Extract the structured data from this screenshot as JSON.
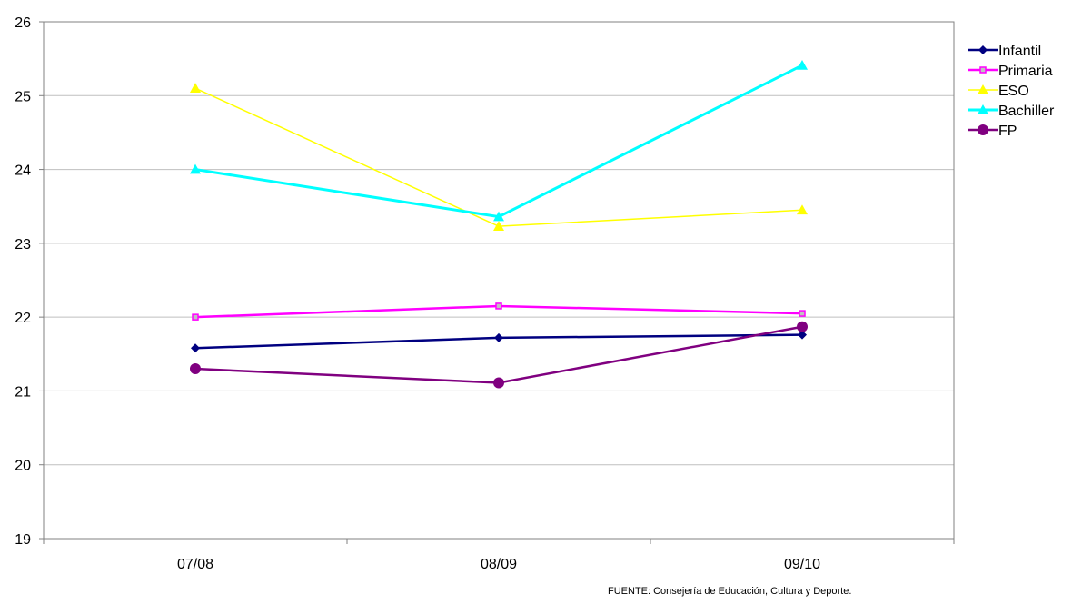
{
  "chart_data": {
    "type": "line",
    "title": "",
    "xlabel": "",
    "ylabel": "",
    "categories": [
      "07/08",
      "08/09",
      "09/10"
    ],
    "ylim": [
      19,
      26
    ],
    "yticks": [
      19,
      20,
      21,
      22,
      23,
      24,
      25,
      26
    ],
    "grid": "horizontal",
    "legend_position": "right",
    "series": [
      {
        "name": "Infantil",
        "values": [
          21.58,
          21.72,
          21.76
        ],
        "color": "#000080",
        "marker": "diamond"
      },
      {
        "name": "Primaria",
        "values": [
          22.0,
          22.15,
          22.05
        ],
        "color": "#ff00ff",
        "marker": "square"
      },
      {
        "name": "ESO",
        "values": [
          25.1,
          23.23,
          23.45
        ],
        "color": "#ffff00",
        "marker": "triangle"
      },
      {
        "name": "Bachiller",
        "values": [
          24.0,
          23.36,
          25.41
        ],
        "color": "#00ffff",
        "marker": "triangle"
      },
      {
        "name": "FP",
        "values": [
          21.3,
          21.11,
          21.87
        ],
        "color": "#800080",
        "marker": "circle"
      }
    ]
  },
  "source_note": "FUENTE: Consejería de Educación, Cultura y Deporte."
}
